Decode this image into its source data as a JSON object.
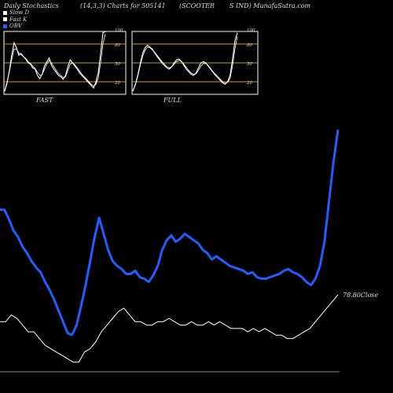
{
  "header": {
    "title": "Daily Stochastics",
    "params": "(14,3,3) Charts for 505141",
    "symbol": "(SCOOTER",
    "site": "S IND) MunafaSutra.com"
  },
  "legend": [
    {
      "label": "Slow D",
      "color": "#ffffff"
    },
    {
      "label": "Fast K",
      "color": "#ffffff"
    },
    {
      "label": "OBV",
      "color": "#1f5fff"
    }
  ],
  "colors": {
    "obv": "#1f5fff",
    "price": "#ffffff",
    "stoch": "#ffffff",
    "level": "#c8961e",
    "panel": "#ffffff"
  },
  "panels": {
    "fast_label": "FAST",
    "full_label": "FULL",
    "levels": [
      20,
      50,
      80,
      100
    ],
    "level_labels": [
      "20",
      "50",
      "80",
      "100"
    ]
  },
  "price_label": "78.80Close",
  "chart_data": [
    {
      "type": "line",
      "title": "FAST",
      "ylim": [
        0,
        100
      ],
      "series": [
        {
          "values": [
            5,
            18,
            38,
            62,
            82,
            74,
            62,
            65,
            60,
            56,
            50,
            48,
            42,
            40,
            30,
            25,
            32,
            45,
            52,
            58,
            46,
            40,
            35,
            30,
            28,
            24,
            30,
            44,
            55,
            50,
            45,
            40,
            34,
            30,
            26,
            22,
            18,
            14,
            10,
            20,
            35,
            65,
            98,
            100
          ]
        },
        {
          "values": [
            6,
            20,
            36,
            55,
            72,
            72,
            66,
            63,
            60,
            57,
            52,
            49,
            45,
            41,
            35,
            30,
            31,
            40,
            48,
            54,
            50,
            44,
            38,
            33,
            30,
            27,
            28,
            38,
            48,
            50,
            47,
            42,
            37,
            32,
            28,
            24,
            20,
            16,
            13,
            16,
            26,
            50,
            80,
            96
          ]
        }
      ]
    },
    {
      "type": "line",
      "title": "FULL",
      "ylim": [
        0,
        100
      ],
      "series": [
        {
          "values": [
            5,
            15,
            30,
            48,
            65,
            74,
            78,
            75,
            72,
            66,
            60,
            55,
            50,
            46,
            42,
            40,
            44,
            50,
            55,
            56,
            52,
            46,
            40,
            36,
            32,
            30,
            34,
            42,
            50,
            52,
            50,
            45,
            40,
            35,
            30,
            26,
            22,
            18,
            16,
            20,
            30,
            55,
            85,
            98
          ]
        },
        {
          "values": [
            6,
            14,
            28,
            45,
            60,
            70,
            75,
            74,
            71,
            67,
            62,
            57,
            52,
            48,
            44,
            42,
            44,
            48,
            52,
            54,
            52,
            48,
            43,
            38,
            34,
            32,
            33,
            38,
            45,
            49,
            49,
            46,
            41,
            36,
            32,
            28,
            24,
            20,
            18,
            19,
            25,
            45,
            72,
            92
          ]
        }
      ]
    },
    {
      "type": "line",
      "title": "OBV",
      "series": [
        {
          "values": [
            135,
            135,
            129,
            122,
            118,
            112,
            108,
            103,
            99,
            96,
            90,
            85,
            79,
            72,
            65,
            58,
            57,
            63,
            75,
            88,
            103,
            118,
            130,
            120,
            110,
            103,
            100,
            98,
            95,
            95,
            97,
            93,
            92,
            90,
            94,
            100,
            110,
            116,
            119,
            115,
            117,
            120,
            118,
            116,
            114,
            110,
            108,
            104,
            106,
            104,
            102,
            100,
            99,
            98,
            97,
            95,
            96,
            93,
            92,
            92,
            93,
            94,
            95,
            97,
            98,
            96,
            95,
            93,
            90,
            88,
            92,
            100,
            115,
            140,
            165,
            185
          ]
        }
      ]
    },
    {
      "type": "line",
      "title": "78.80Close",
      "series": [
        {
          "values": [
            58,
            58,
            60,
            59,
            57,
            55,
            55,
            53,
            51,
            50,
            49,
            48,
            47,
            46,
            46,
            49,
            50,
            52,
            55,
            57,
            59,
            61,
            62,
            60,
            58,
            58,
            57,
            57,
            58,
            58,
            59,
            58,
            57,
            57,
            58,
            57,
            57,
            58,
            57,
            58,
            57,
            56,
            56,
            56,
            55,
            56,
            55,
            56,
            55,
            54,
            54,
            53,
            53,
            54,
            55,
            56,
            58,
            60,
            62,
            64,
            66
          ]
        }
      ]
    }
  ]
}
